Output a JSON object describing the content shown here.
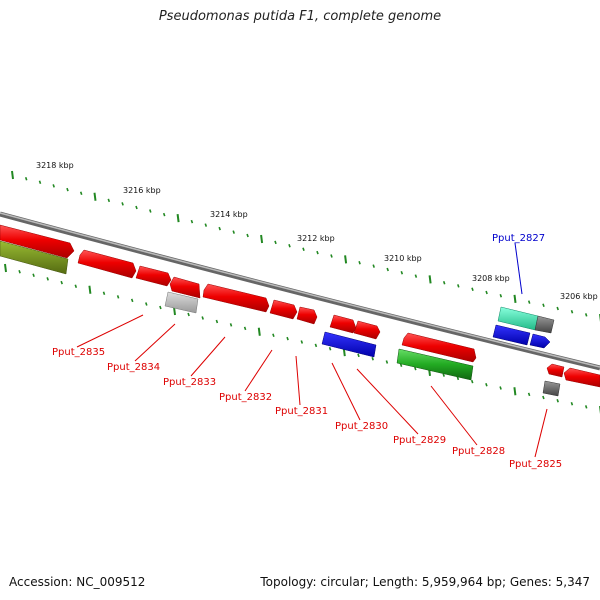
{
  "title": "Pseudomonas putida F1, complete genome",
  "accession": "Accession: NC_009512",
  "summary": "Topology: circular; Length: 5,959,964 bp; Genes: 5,347",
  "colors": {
    "red": "#ff0000",
    "blue": "#0000ee",
    "green": "#22bb22",
    "olive": "#6b8e23",
    "cyan": "#33ddaa",
    "gray": "#999999",
    "darkgray": "#666666",
    "label_red": "#dd0000",
    "label_blue": "#0000cc",
    "tick": "#228822"
  },
  "kbp_labels": [
    "3218 kbp",
    "3216 kbp",
    "3214 kbp",
    "3212 kbp",
    "3210 kbp",
    "3208 kbp",
    "3206 kbp"
  ],
  "gene_labels": [
    {
      "name": "Pput_2835",
      "color": "red"
    },
    {
      "name": "Pput_2834",
      "color": "red"
    },
    {
      "name": "Pput_2833",
      "color": "red"
    },
    {
      "name": "Pput_2832",
      "color": "red"
    },
    {
      "name": "Pput_2831",
      "color": "red"
    },
    {
      "name": "Pput_2830",
      "color": "red"
    },
    {
      "name": "Pput_2829",
      "color": "red"
    },
    {
      "name": "Pput_2828",
      "color": "red"
    },
    {
      "name": "Pput_2827",
      "color": "blue"
    },
    {
      "name": "Pput_2825",
      "color": "red"
    }
  ]
}
